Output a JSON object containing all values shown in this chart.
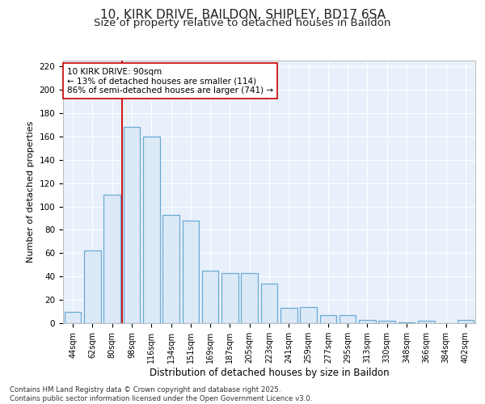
{
  "title1": "10, KIRK DRIVE, BAILDON, SHIPLEY, BD17 6SA",
  "title2": "Size of property relative to detached houses in Baildon",
  "xlabel": "Distribution of detached houses by size in Baildon",
  "ylabel": "Number of detached properties",
  "categories": [
    "44sqm",
    "62sqm",
    "80sqm",
    "98sqm",
    "116sqm",
    "134sqm",
    "151sqm",
    "169sqm",
    "187sqm",
    "205sqm",
    "223sqm",
    "241sqm",
    "259sqm",
    "277sqm",
    "295sqm",
    "313sqm",
    "330sqm",
    "348sqm",
    "366sqm",
    "384sqm",
    "402sqm"
  ],
  "values": [
    10,
    62,
    110,
    168,
    160,
    93,
    88,
    45,
    43,
    43,
    34,
    13,
    14,
    7,
    7,
    3,
    2,
    1,
    2,
    0,
    3
  ],
  "bar_fill_color": "#dce9f7",
  "bar_edge_color": "#6aaad4",
  "highlight_color": "#cc0000",
  "highlight_index": 3,
  "annotation_line1": "10 KIRK DRIVE: 90sqm",
  "annotation_line2": "← 13% of detached houses are smaller (114)",
  "annotation_line3": "86% of semi-detached houses are larger (741) →",
  "ylim": [
    0,
    225
  ],
  "yticks": [
    0,
    20,
    40,
    60,
    80,
    100,
    120,
    140,
    160,
    180,
    200,
    220
  ],
  "bg_color": "#e8f0fb",
  "grid_color": "#ffffff",
  "footer": "Contains HM Land Registry data © Crown copyright and database right 2025.\nContains public sector information licensed under the Open Government Licence v3.0.",
  "title_fontsize": 11,
  "subtitle_fontsize": 9.5
}
